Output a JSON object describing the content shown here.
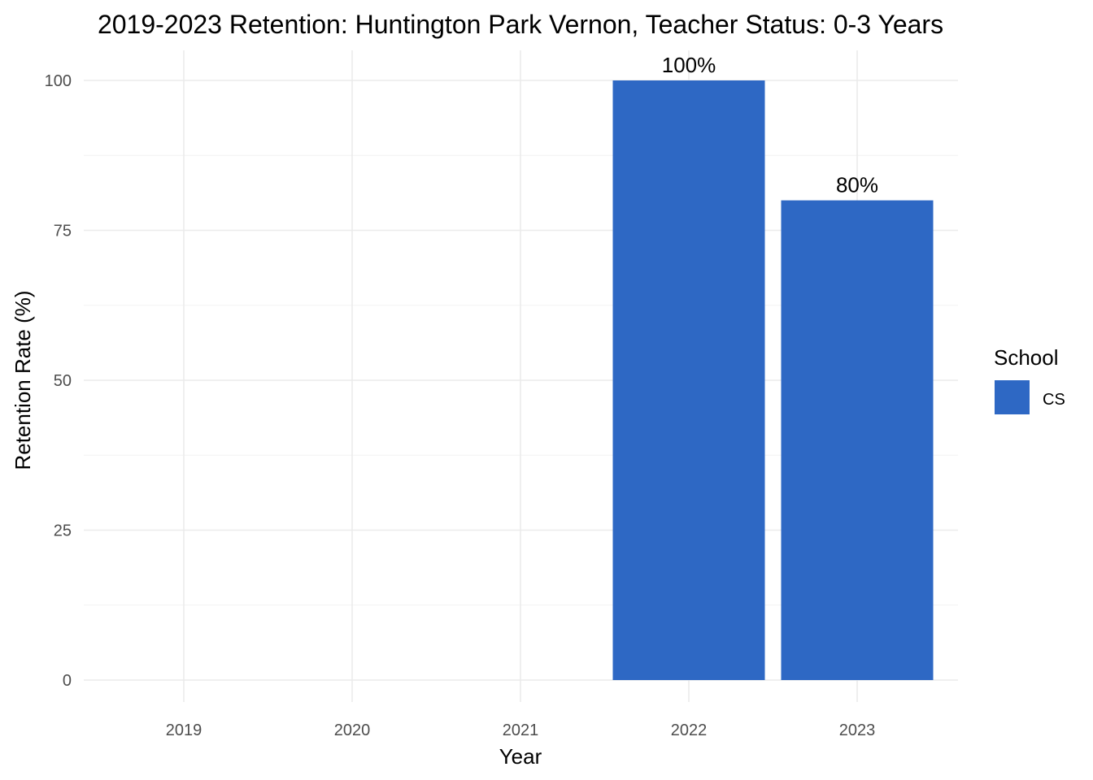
{
  "chart_data": {
    "type": "bar",
    "title": "2019-2023 Retention: Huntington Park Vernon, Teacher Status: 0-3 Years",
    "xlabel": "Year",
    "ylabel": "Retention Rate (%)",
    "categories": [
      "2019",
      "2020",
      "2021",
      "2022",
      "2023"
    ],
    "series": [
      {
        "name": "CS",
        "values": [
          null,
          null,
          null,
          100,
          80
        ],
        "labels": [
          null,
          null,
          null,
          "100%",
          "80%"
        ]
      }
    ],
    "yticks": [
      "0",
      "25",
      "50",
      "75",
      "100"
    ],
    "ylim": [
      0,
      100
    ],
    "grid": true,
    "legend": {
      "title": "School",
      "position": "right"
    },
    "colors": {
      "CS": "#2e68c4"
    }
  }
}
